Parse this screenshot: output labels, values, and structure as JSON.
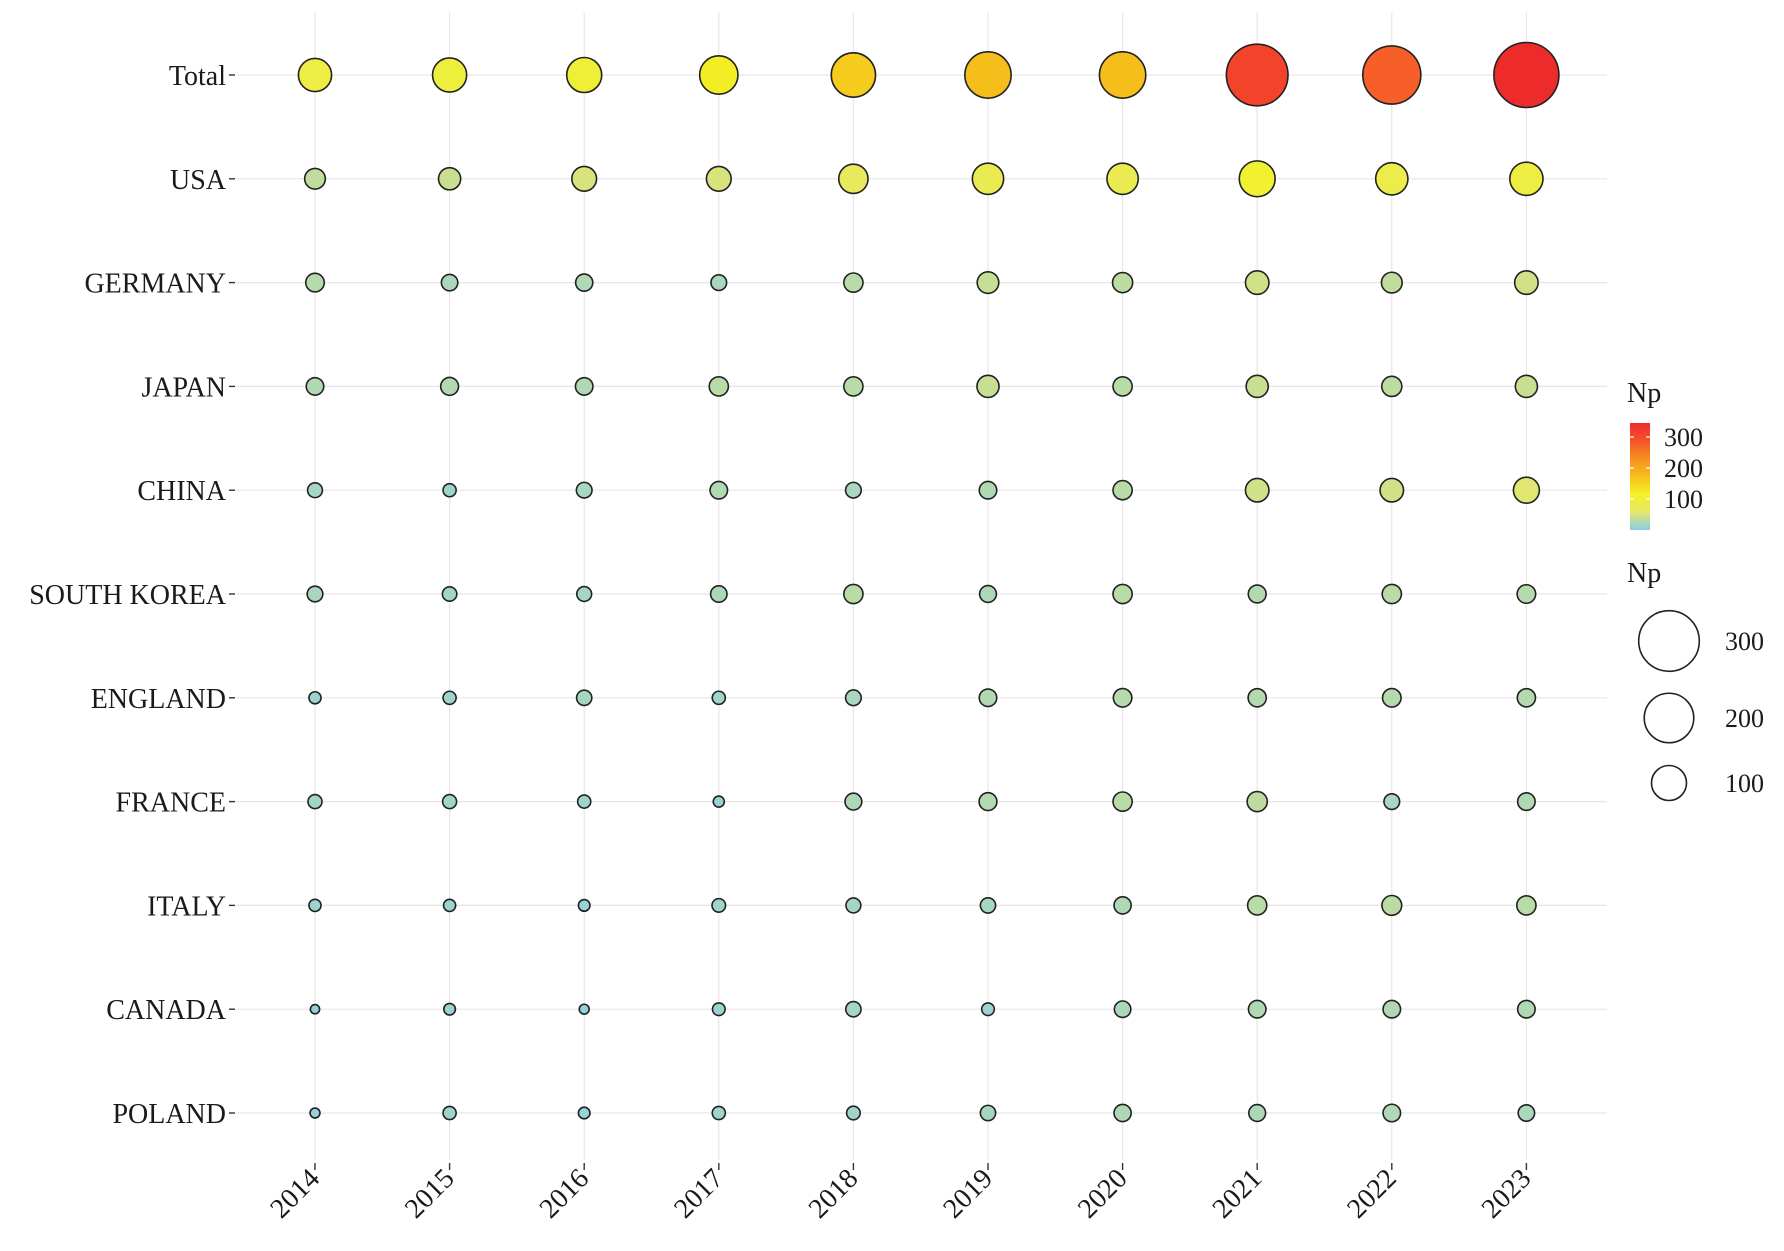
{
  "chart_data": {
    "type": "bubble",
    "x_categories": [
      "2014",
      "2015",
      "2016",
      "2017",
      "2018",
      "2019",
      "2020",
      "2021",
      "2022",
      "2023"
    ],
    "y_categories": [
      "Total",
      "USA",
      "GERMANY",
      "JAPAN",
      "CHINA",
      "SOUTH KOREA",
      "ENGLAND",
      "FRANCE",
      "ITALY",
      "CANADA",
      "POLAND"
    ],
    "values": {
      "Total": [
        90,
        95,
        100,
        120,
        160,
        175,
        175,
        310,
        275,
        345
      ],
      "USA": [
        35,
        40,
        50,
        50,
        70,
        80,
        80,
        105,
        85,
        90
      ],
      "GERMANY": [
        28,
        22,
        24,
        20,
        30,
        38,
        33,
        45,
        35,
        45
      ],
      "JAPAN": [
        25,
        26,
        25,
        30,
        30,
        40,
        30,
        40,
        33,
        40
      ],
      "CHINA": [
        18,
        14,
        20,
        25,
        20,
        25,
        30,
        45,
        45,
        55
      ],
      "SOUTH KOREA": [
        20,
        17,
        18,
        22,
        30,
        23,
        30,
        26,
        30,
        28
      ],
      "ENGLAND": [
        12,
        14,
        19,
        14,
        20,
        25,
        28,
        27,
        28,
        27
      ],
      "FRANCE": [
        16,
        16,
        14,
        10,
        23,
        26,
        30,
        33,
        20,
        25
      ],
      "ITALY": [
        12,
        12,
        11,
        15,
        18,
        19,
        24,
        30,
        32,
        30
      ],
      "CANADA": [
        7,
        11,
        8,
        13,
        19,
        13,
        22,
        25,
        25,
        25
      ],
      "POLAND": [
        8,
        14,
        11,
        14,
        15,
        19,
        24,
        23,
        25,
        22
      ]
    },
    "size_legend": {
      "title": "Np",
      "values": [
        300,
        200,
        100
      ]
    },
    "color_legend": {
      "title": "Np",
      "ticks": [
        300,
        200,
        100
      ],
      "min": 0,
      "max": 345
    },
    "color_scale": [
      "#87ceeb",
      "#e5e66b",
      "#f3f225",
      "#f5c01b",
      "#f7901f",
      "#f6532a",
      "#ee2b2b"
    ],
    "grid": true
  }
}
